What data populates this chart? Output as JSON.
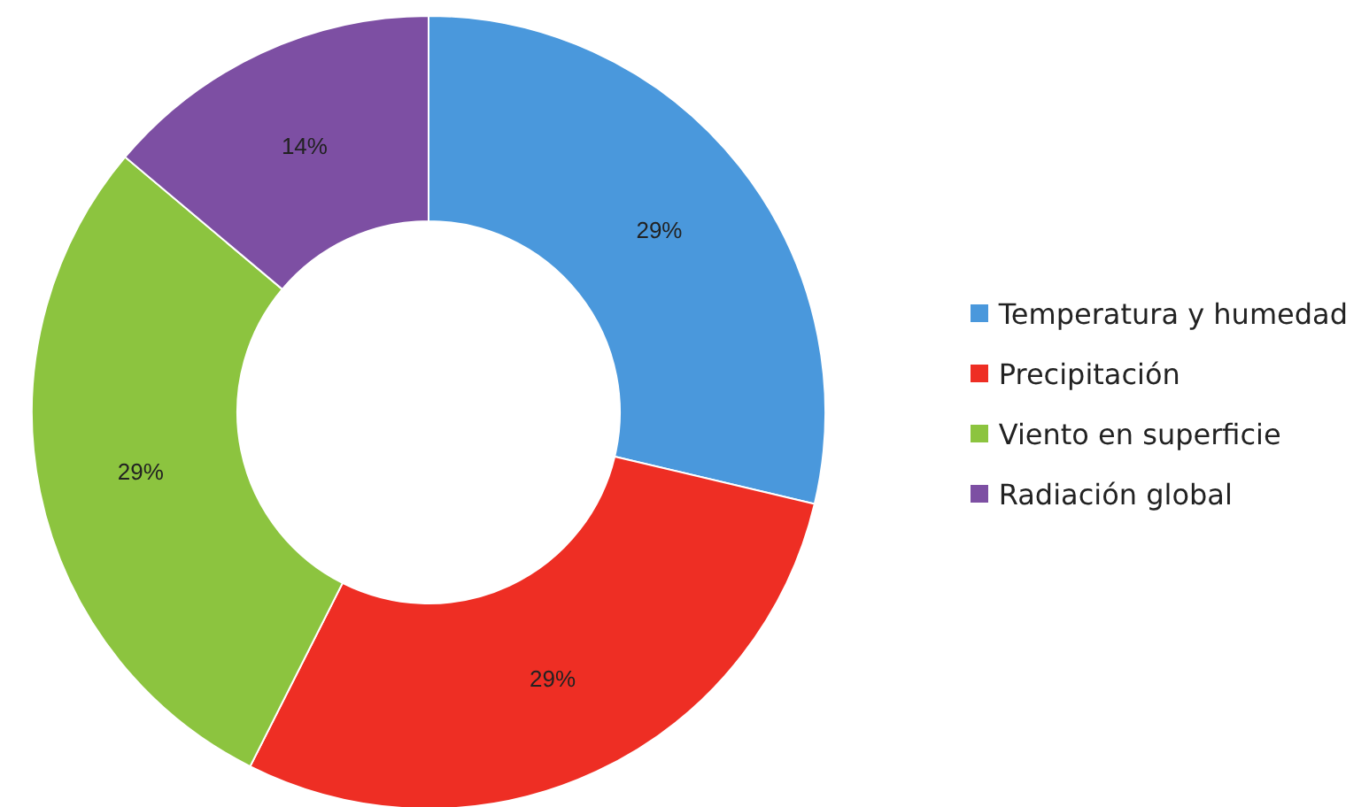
{
  "chart_data": {
    "type": "donut",
    "categories": [
      "Temperatura y humedad",
      "Precipitación",
      "Viento en superficie",
      "Radiación global"
    ],
    "values": [
      29,
      29,
      29,
      14
    ],
    "colors": [
      "#4a98dc",
      "#ee2e24",
      "#8cc43f",
      "#7d4fa3"
    ],
    "value_labels": [
      "29%",
      "29%",
      "29%",
      "14%"
    ],
    "legend": "right"
  }
}
